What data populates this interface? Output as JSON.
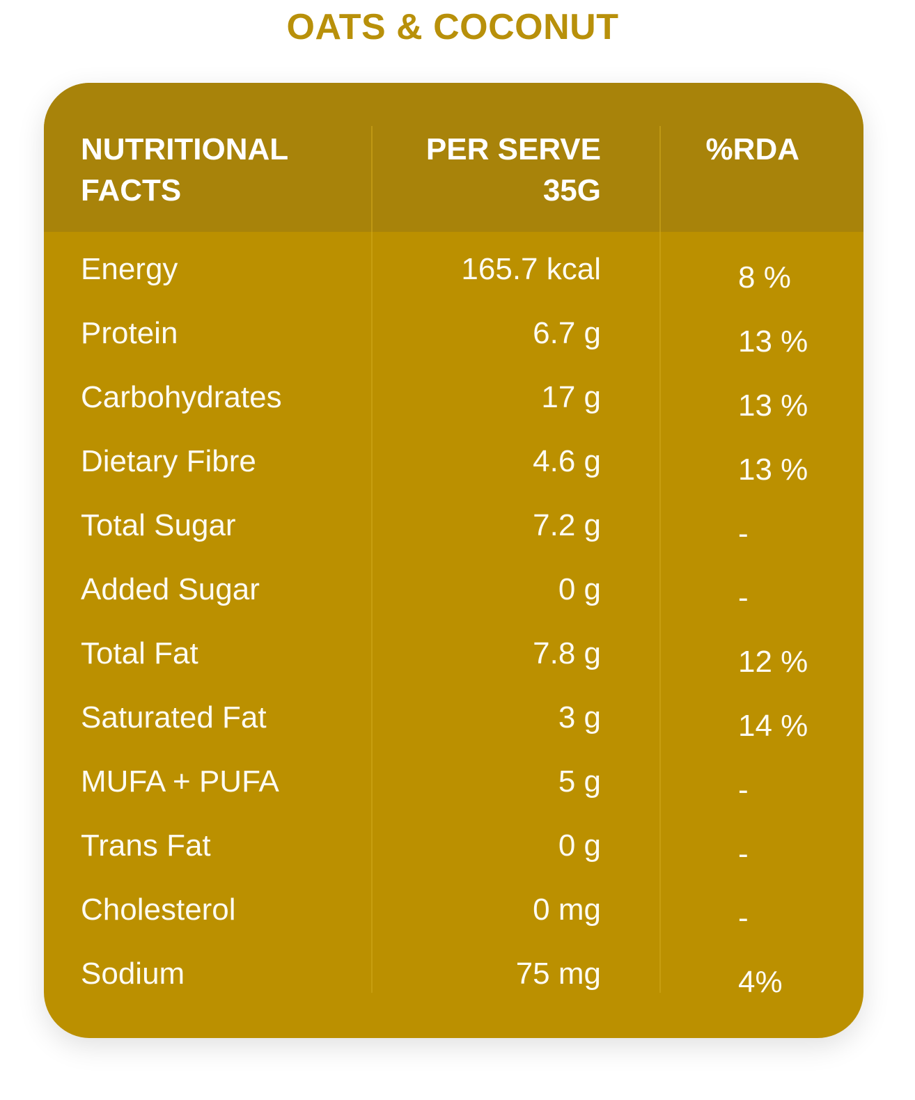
{
  "title": "OATS & COCONUT",
  "table": {
    "headers": {
      "nutrient": "NUTRITIONAL\nFACTS",
      "per_serve": "PER SERVE\n35G",
      "rda": "%RDA"
    },
    "rows": [
      {
        "nutrient": "Energy",
        "per_serve": "165.7 kcal",
        "rda": "8 %"
      },
      {
        "nutrient": "Protein",
        "per_serve": "6.7 g",
        "rda": "13 %"
      },
      {
        "nutrient": "Carbohydrates",
        "per_serve": "17 g",
        "rda": "13 %"
      },
      {
        "nutrient": "Dietary Fibre",
        "per_serve": "4.6 g",
        "rda": "13 %"
      },
      {
        "nutrient": "Total Sugar",
        "per_serve": "7.2 g",
        "rda": "-"
      },
      {
        "nutrient": "Added Sugar",
        "per_serve": "0 g",
        "rda": "-"
      },
      {
        "nutrient": "Total Fat",
        "per_serve": "7.8 g",
        "rda": "12 %"
      },
      {
        "nutrient": "Saturated Fat",
        "per_serve": "3 g",
        "rda": "14 %"
      },
      {
        "nutrient": "MUFA + PUFA",
        "per_serve": "5 g",
        "rda": "-"
      },
      {
        "nutrient": "Trans Fat",
        "per_serve": "0 g",
        "rda": "-"
      },
      {
        "nutrient": "Cholesterol",
        "per_serve": "0 mg",
        "rda": "-"
      },
      {
        "nutrient": "Sodium",
        "per_serve": "75 mg",
        "rda": "4%"
      }
    ]
  },
  "colors": {
    "title": "#b8900a",
    "header_background": "#a8830a",
    "body_background": "#bb9000",
    "text": "#ffffff"
  }
}
